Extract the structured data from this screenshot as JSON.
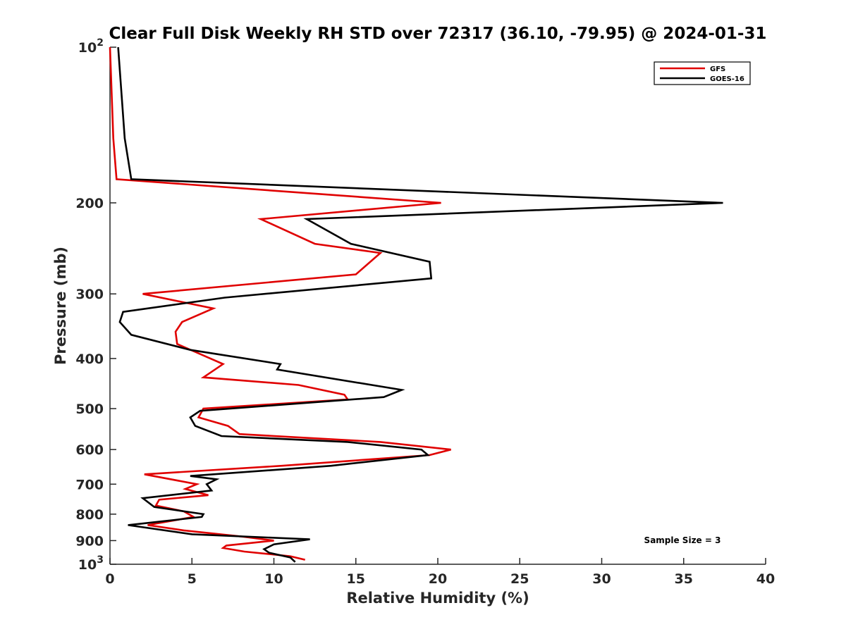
{
  "chart_data": {
    "type": "line",
    "title": "Clear Full Disk Weekly RH STD over 72317 (36.10, -79.95) @ 2024-01-31",
    "xlabel": "Relative Humidity (%)",
    "ylabel": "Pressure (mb)",
    "xlim": [
      0,
      40
    ],
    "ylim": [
      100,
      1000
    ],
    "yscale": "log",
    "y_reversed": true,
    "grid": false,
    "legend_position": "top-right",
    "x_ticks": [
      "0",
      "5",
      "10",
      "15",
      "20",
      "25",
      "30",
      "35",
      "40"
    ],
    "x_tick_values": [
      0,
      5,
      10,
      15,
      20,
      25,
      30,
      35,
      40
    ],
    "y_ticks": [
      {
        "value": 100,
        "base": "10",
        "exp": "2"
      },
      {
        "value": 200,
        "label": "200"
      },
      {
        "value": 300,
        "label": "300"
      },
      {
        "value": 400,
        "label": "400"
      },
      {
        "value": 500,
        "label": "500"
      },
      {
        "value": 600,
        "label": "600"
      },
      {
        "value": 700,
        "label": "700"
      },
      {
        "value": 800,
        "label": "800"
      },
      {
        "value": 900,
        "label": "900"
      },
      {
        "value": 1000,
        "base": "10",
        "exp": "3"
      }
    ],
    "annotation": "Sample Size = 3",
    "series": [
      {
        "name": "GFS",
        "color": "#e00000",
        "points": [
          {
            "p": 100,
            "x": 0.0
          },
          {
            "p": 150,
            "x": 0.2
          },
          {
            "p": 180,
            "x": 0.4
          },
          {
            "p": 200,
            "x": 20.2
          },
          {
            "p": 215,
            "x": 9.2
          },
          {
            "p": 240,
            "x": 12.5
          },
          {
            "p": 250,
            "x": 16.5
          },
          {
            "p": 275,
            "x": 15.0
          },
          {
            "p": 300,
            "x": 2.0
          },
          {
            "p": 320,
            "x": 6.3
          },
          {
            "p": 340,
            "x": 4.4
          },
          {
            "p": 355,
            "x": 4.0
          },
          {
            "p": 375,
            "x": 4.1
          },
          {
            "p": 410,
            "x": 6.9
          },
          {
            "p": 435,
            "x": 5.7
          },
          {
            "p": 450,
            "x": 11.5
          },
          {
            "p": 470,
            "x": 14.3
          },
          {
            "p": 480,
            "x": 14.5
          },
          {
            "p": 500,
            "x": 5.7
          },
          {
            "p": 520,
            "x": 5.4
          },
          {
            "p": 540,
            "x": 7.2
          },
          {
            "p": 560,
            "x": 7.9
          },
          {
            "p": 580,
            "x": 16.5
          },
          {
            "p": 600,
            "x": 20.8
          },
          {
            "p": 615,
            "x": 19.5
          },
          {
            "p": 645,
            "x": 10.5
          },
          {
            "p": 670,
            "x": 2.1
          },
          {
            "p": 700,
            "x": 5.3
          },
          {
            "p": 715,
            "x": 4.6
          },
          {
            "p": 735,
            "x": 6.0
          },
          {
            "p": 750,
            "x": 3.0
          },
          {
            "p": 770,
            "x": 2.8
          },
          {
            "p": 790,
            "x": 4.5
          },
          {
            "p": 810,
            "x": 5.1
          },
          {
            "p": 840,
            "x": 2.3
          },
          {
            "p": 860,
            "x": 4.5
          },
          {
            "p": 885,
            "x": 8.2
          },
          {
            "p": 900,
            "x": 10.0
          },
          {
            "p": 920,
            "x": 7.1
          },
          {
            "p": 930,
            "x": 6.9
          },
          {
            "p": 945,
            "x": 8.2
          },
          {
            "p": 965,
            "x": 11.0
          },
          {
            "p": 980,
            "x": 11.9
          }
        ]
      },
      {
        "name": "GOES-16",
        "color": "#000000",
        "points": [
          {
            "p": 100,
            "x": 0.5
          },
          {
            "p": 150,
            "x": 0.9
          },
          {
            "p": 180,
            "x": 1.3
          },
          {
            "p": 200,
            "x": 37.4
          },
          {
            "p": 215,
            "x": 12.0
          },
          {
            "p": 240,
            "x": 14.7
          },
          {
            "p": 260,
            "x": 19.5
          },
          {
            "p": 280,
            "x": 19.6
          },
          {
            "p": 305,
            "x": 7.0
          },
          {
            "p": 325,
            "x": 0.8
          },
          {
            "p": 340,
            "x": 0.6
          },
          {
            "p": 360,
            "x": 1.3
          },
          {
            "p": 385,
            "x": 4.9
          },
          {
            "p": 410,
            "x": 10.4
          },
          {
            "p": 420,
            "x": 10.2
          },
          {
            "p": 460,
            "x": 17.8
          },
          {
            "p": 475,
            "x": 16.7
          },
          {
            "p": 505,
            "x": 5.5
          },
          {
            "p": 520,
            "x": 4.9
          },
          {
            "p": 540,
            "x": 5.2
          },
          {
            "p": 565,
            "x": 6.8
          },
          {
            "p": 580,
            "x": 14.5
          },
          {
            "p": 600,
            "x": 19.0
          },
          {
            "p": 615,
            "x": 19.4
          },
          {
            "p": 645,
            "x": 13.5
          },
          {
            "p": 675,
            "x": 4.9
          },
          {
            "p": 685,
            "x": 6.5
          },
          {
            "p": 700,
            "x": 5.9
          },
          {
            "p": 720,
            "x": 6.2
          },
          {
            "p": 745,
            "x": 2.0
          },
          {
            "p": 775,
            "x": 2.7
          },
          {
            "p": 800,
            "x": 5.7
          },
          {
            "p": 810,
            "x": 5.6
          },
          {
            "p": 840,
            "x": 1.1
          },
          {
            "p": 875,
            "x": 5.0
          },
          {
            "p": 895,
            "x": 12.2
          },
          {
            "p": 915,
            "x": 10.0
          },
          {
            "p": 935,
            "x": 9.4
          },
          {
            "p": 950,
            "x": 9.7
          },
          {
            "p": 970,
            "x": 11.0
          },
          {
            "p": 990,
            "x": 11.3
          }
        ]
      }
    ]
  }
}
